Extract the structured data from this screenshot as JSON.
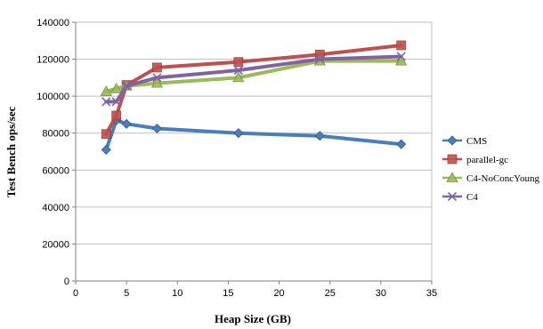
{
  "chart_data": {
    "type": "line",
    "xlabel": "Heap Size (GB)",
    "ylabel": "Test Bench ops/sec",
    "xlim": [
      0,
      35
    ],
    "ylim": [
      0,
      140000
    ],
    "xticks": [
      0,
      5,
      10,
      15,
      20,
      25,
      30,
      35
    ],
    "yticks": [
      0,
      20000,
      40000,
      60000,
      80000,
      100000,
      120000,
      140000
    ],
    "xtick_labels": [
      "0",
      "5",
      "10",
      "15",
      "20",
      "25",
      "30",
      "35"
    ],
    "ytick_labels": [
      "0",
      "20000",
      "40000",
      "60000",
      "80000",
      "100000",
      "120000",
      "140000"
    ],
    "grid": "horizontal",
    "legend_position": "right",
    "series": [
      {
        "name": "CMS",
        "color": "#4a7ebb",
        "marker": "diamond",
        "x": [
          3,
          4,
          5,
          8,
          16,
          24,
          32
        ],
        "y": [
          71000,
          87000,
          85000,
          82500,
          80000,
          78500,
          74000
        ]
      },
      {
        "name": "parallel-gc",
        "color": "#c0504d",
        "marker": "square",
        "x": [
          3,
          4,
          5,
          8,
          16,
          24,
          32
        ],
        "y": [
          79500,
          89500,
          106000,
          115500,
          118500,
          122500,
          127500
        ]
      },
      {
        "name": "C4-NoConcYoung",
        "color": "#9bbb59",
        "marker": "triangle",
        "x": [
          3,
          4,
          5,
          8,
          16,
          24,
          32
        ],
        "y": [
          102500,
          104000,
          105500,
          107000,
          110000,
          119000,
          119000
        ]
      },
      {
        "name": "C4",
        "color": "#8064a2",
        "marker": "x",
        "x": [
          3,
          4,
          5,
          8,
          16,
          24,
          32
        ],
        "y": [
          97000,
          97000,
          105500,
          110000,
          114000,
          120000,
          121500
        ]
      }
    ]
  }
}
